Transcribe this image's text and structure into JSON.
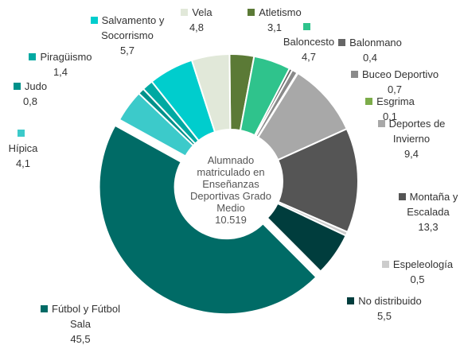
{
  "chart_data": {
    "type": "donut",
    "center_label": "Alumnado matriculado en Enseñanzas Deportivas Grado Medio",
    "center_value": "10.519",
    "categories": [
      "Atletismo",
      "Baloncesto",
      "Balonmano",
      "Buceo Deportivo",
      "Esgrima",
      "Deportes de Invierno",
      "Montaña y Escalada",
      "Espeleología",
      "No distribuido",
      "Fútbol y Fútbol Sala",
      "Hípica",
      "Judo",
      "Piragüismo",
      "Salvamento y Socorrismo",
      "Vela"
    ],
    "values": [
      3.1,
      4.7,
      0.4,
      0.7,
      0.1,
      9.4,
      13.3,
      0.5,
      5.5,
      45.5,
      4.1,
      0.8,
      1.4,
      5.7,
      4.8
    ],
    "value_labels": [
      "3,1",
      "4,7",
      "0,4",
      "0,7",
      "0,1",
      "9,4",
      "13,3",
      "0,5",
      "5,5",
      "45,5",
      "4,1",
      "0,8",
      "1,4",
      "5,7",
      "4,8"
    ],
    "colors": [
      "#5b7a36",
      "#2fc38c",
      "#666666",
      "#8a8a8a",
      "#7cac4a",
      "#a8a8a8",
      "#555555",
      "#cccccc",
      "#003d3d",
      "#006b66",
      "#3ccaca",
      "#00918a",
      "#00a9a2",
      "#00cdcd",
      "#e1e8d9"
    ],
    "exploded": "Fútbol y Fútbol Sala"
  }
}
